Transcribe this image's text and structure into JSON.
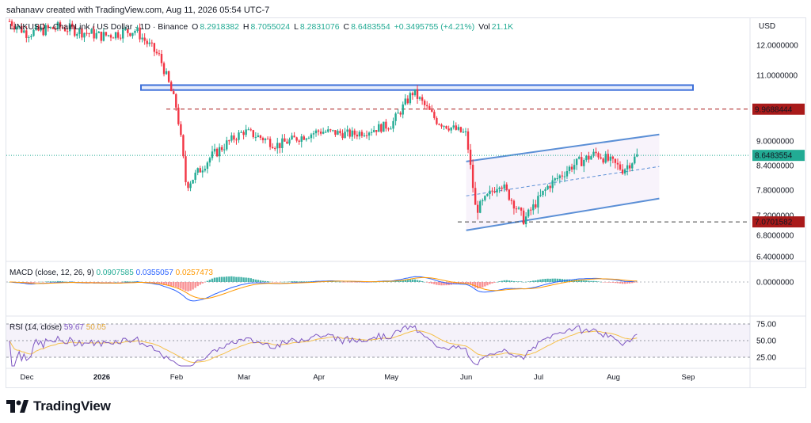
{
  "attribution": "sahanavv created with TradingView.com, Aug 11, 2026 05:54 UTC-7",
  "legend": {
    "symbol": "LINKUSD · ChainLink / US Dollar · 1D · Binance",
    "open_label": "O",
    "open": "8.2918382",
    "high_label": "H",
    "high": "8.7055024",
    "low_label": "L",
    "low": "8.2831076",
    "close_label": "C",
    "close": "8.6483554",
    "change": "+0.3495755 (+4.21%)",
    "vol_label": "Vol",
    "vol": "21.1K"
  },
  "currency": "USD",
  "brand": "TradingView",
  "colors": {
    "up": "#22ab94",
    "down": "#f23645",
    "channel": "#5b8fd6",
    "level_red": "#a91a1a",
    "macd": "#2962ff",
    "signal": "#ff9800",
    "rsi": "#7e57c2",
    "rsi_ma": "#f5c04a",
    "current_price": "#22ab94"
  },
  "chart_data": [
    {
      "type": "line",
      "title": "LINKUSD · ChainLink / US Dollar · 1D · Binance",
      "y_axis_ticks": [
        "12.0000000",
        "11.0000000",
        "9.0000000",
        "8.4000000",
        "7.8000000",
        "7.2000000",
        "6.8000000",
        "6.4000000"
      ],
      "x_axis_ticks": [
        "Dec",
        "2026",
        "Feb",
        "Mar",
        "Apr",
        "May",
        "Jun",
        "Jul",
        "Aug",
        "Sep"
      ],
      "price_labels": [
        {
          "value": "9.9688444",
          "kind": "horizontal-level"
        },
        {
          "value": "8.6483554",
          "kind": "current-price"
        },
        {
          "value": "7.0701582",
          "kind": "horizontal-level"
        }
      ],
      "resistance_zone": [
        10.55,
        10.7
      ],
      "series": [
        {
          "name": "close (approx)",
          "x": [
            "2025-11-20",
            "2025-12-01",
            "2025-12-15",
            "2026-01-01",
            "2026-01-15",
            "2026-01-25",
            "2026-02-01",
            "2026-02-05",
            "2026-02-15",
            "2026-03-01",
            "2026-03-15",
            "2026-04-01",
            "2026-04-15",
            "2026-05-01",
            "2026-05-10",
            "2026-05-20",
            "2026-06-01",
            "2026-06-05",
            "2026-06-15",
            "2026-06-25",
            "2026-07-05",
            "2026-07-15",
            "2026-07-25",
            "2026-08-05",
            "2026-08-11"
          ],
          "y": [
            13.0,
            12.4,
            12.6,
            12.3,
            12.5,
            11.6,
            10.0,
            7.9,
            8.6,
            9.3,
            8.9,
            9.3,
            9.2,
            9.5,
            10.5,
            9.6,
            9.2,
            7.3,
            8.0,
            7.1,
            7.9,
            8.4,
            8.7,
            8.3,
            8.6483554
          ]
        }
      ],
      "channel": {
        "upper": [
          [
            "2026-06-01",
            8.5
          ],
          [
            "2026-08-20",
            9.2
          ]
        ],
        "lower": [
          [
            "2026-06-01",
            6.9
          ],
          [
            "2026-08-20",
            7.6
          ]
        ]
      }
    },
    {
      "type": "bar",
      "title": "MACD (close, 12, 26, 9)",
      "legend_values": [
        "0.0907585",
        "0.0355057",
        "0.0257473"
      ],
      "y_axis_ticks": [
        "0.0000000"
      ]
    },
    {
      "type": "line",
      "title": "RSI (14, close)",
      "legend_values": [
        "59.67",
        "50.05"
      ],
      "y_axis_ticks": [
        "75.00",
        "50.00",
        "25.00"
      ]
    }
  ],
  "macd_legend": {
    "title": "MACD (close, 12, 26, 9)",
    "v1": "0.0907585",
    "v2": "0.0355057",
    "v3": "0.0257473"
  },
  "rsi_legend": {
    "title": "RSI (14, close)",
    "v1": "59.67",
    "v2": "50.05"
  }
}
